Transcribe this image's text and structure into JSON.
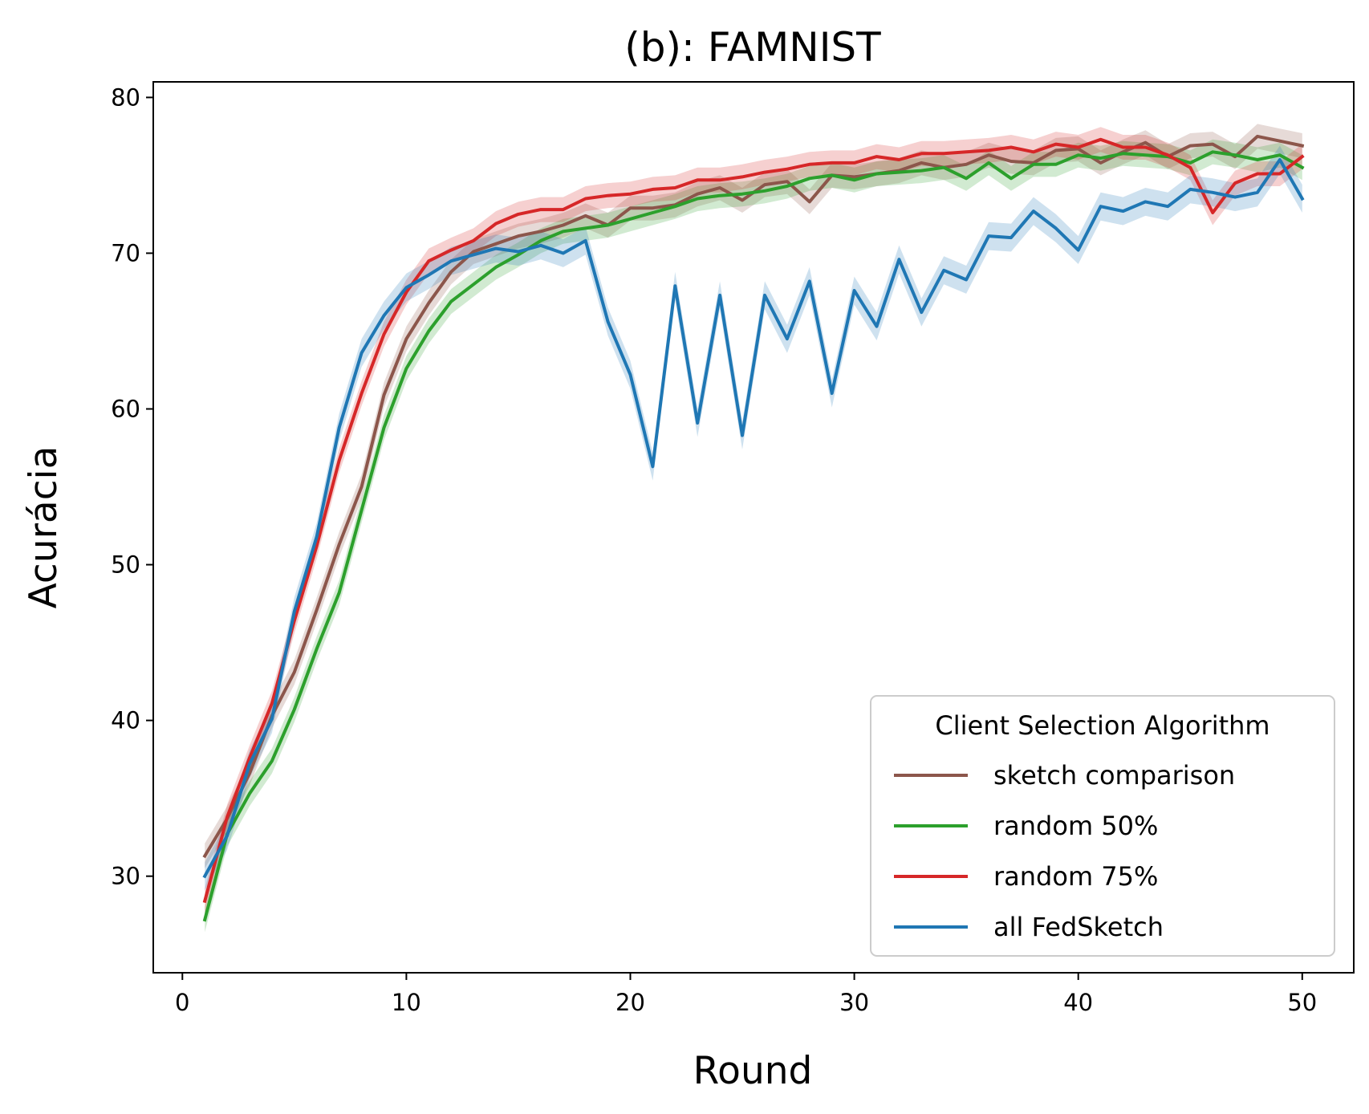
{
  "chart_data": {
    "type": "line",
    "title": "(b): FAMNIST",
    "xlabel": "Round",
    "ylabel": "Acurácia",
    "xlim": [
      -1.3,
      52.3
    ],
    "ylim": [
      23.8,
      81
    ],
    "xticks": [
      0,
      10,
      20,
      30,
      40,
      50
    ],
    "yticks": [
      30,
      40,
      50,
      60,
      70,
      80
    ],
    "grid": false,
    "legend": {
      "title": "Client Selection Algorithm",
      "position": "lower-right"
    },
    "x": [
      1,
      2,
      3,
      4,
      5,
      6,
      7,
      8,
      9,
      10,
      11,
      12,
      13,
      14,
      15,
      16,
      17,
      18,
      19,
      20,
      21,
      22,
      23,
      24,
      25,
      26,
      27,
      28,
      29,
      30,
      31,
      32,
      33,
      34,
      35,
      36,
      37,
      38,
      39,
      40,
      41,
      42,
      43,
      44,
      45,
      46,
      47,
      48,
      49,
      50
    ],
    "series": [
      {
        "name": "sketch comparison",
        "color": "#8c564b",
        "band": 0.8,
        "values": [
          31.3,
          33.7,
          36.6,
          40.3,
          43.1,
          47.1,
          51.3,
          55.0,
          60.9,
          64.5,
          66.8,
          68.8,
          70.1,
          70.6,
          71.1,
          71.4,
          71.8,
          72.4,
          71.8,
          72.9,
          72.9,
          73.1,
          73.8,
          74.2,
          73.4,
          74.4,
          74.6,
          73.3,
          75.0,
          74.9,
          75.1,
          75.3,
          75.8,
          75.5,
          75.7,
          76.3,
          75.9,
          75.8,
          76.6,
          76.7,
          75.8,
          76.5,
          77.1,
          76.2,
          76.9,
          77.0,
          76.2,
          77.5,
          77.2,
          76.9
        ]
      },
      {
        "name": "random 50%",
        "color": "#2ca02c",
        "band": 0.8,
        "values": [
          27.2,
          32.7,
          35.3,
          37.4,
          40.7,
          44.6,
          48.2,
          53.5,
          58.8,
          62.6,
          65.0,
          66.9,
          68.0,
          69.1,
          69.9,
          70.8,
          71.4,
          71.6,
          71.8,
          72.2,
          72.6,
          73.0,
          73.5,
          73.7,
          73.8,
          74.0,
          74.3,
          74.8,
          75.0,
          74.7,
          75.1,
          75.2,
          75.3,
          75.5,
          74.8,
          75.8,
          74.8,
          75.7,
          75.7,
          76.3,
          76.1,
          76.4,
          76.3,
          76.2,
          75.8,
          76.5,
          76.3,
          76.0,
          76.3,
          75.5
        ]
      },
      {
        "name": "random 75%",
        "color": "#d62728",
        "band": 0.8,
        "values": [
          28.4,
          33.8,
          37.6,
          41.1,
          46.4,
          51.2,
          56.7,
          61.0,
          64.8,
          67.5,
          69.5,
          70.2,
          70.8,
          71.9,
          72.5,
          72.8,
          72.8,
          73.5,
          73.7,
          73.8,
          74.1,
          74.2,
          74.7,
          74.7,
          74.9,
          75.2,
          75.4,
          75.7,
          75.8,
          75.8,
          76.2,
          76.0,
          76.4,
          76.4,
          76.5,
          76.6,
          76.8,
          76.5,
          77.0,
          76.8,
          77.3,
          76.8,
          76.8,
          76.3,
          75.5,
          72.6,
          74.5,
          75.1,
          75.1,
          76.2
        ]
      },
      {
        "name": "all FedSketch",
        "color": "#1f77b4",
        "band": 0.9,
        "values": [
          30.0,
          32.6,
          37.2,
          40.1,
          47.0,
          51.8,
          58.8,
          63.6,
          66.0,
          67.8,
          68.6,
          69.5,
          69.9,
          70.3,
          70.1,
          70.5,
          70.0,
          70.8,
          65.6,
          62.2,
          56.3,
          67.9,
          59.1,
          67.3,
          58.3,
          67.3,
          64.5,
          68.2,
          61.0,
          67.6,
          65.3,
          69.6,
          66.2,
          68.9,
          68.3,
          71.1,
          71.0,
          72.7,
          71.6,
          70.2,
          73.0,
          72.7,
          73.3,
          73.0,
          74.1,
          73.9,
          73.6,
          73.9,
          76.0,
          73.5
        ]
      }
    ]
  }
}
